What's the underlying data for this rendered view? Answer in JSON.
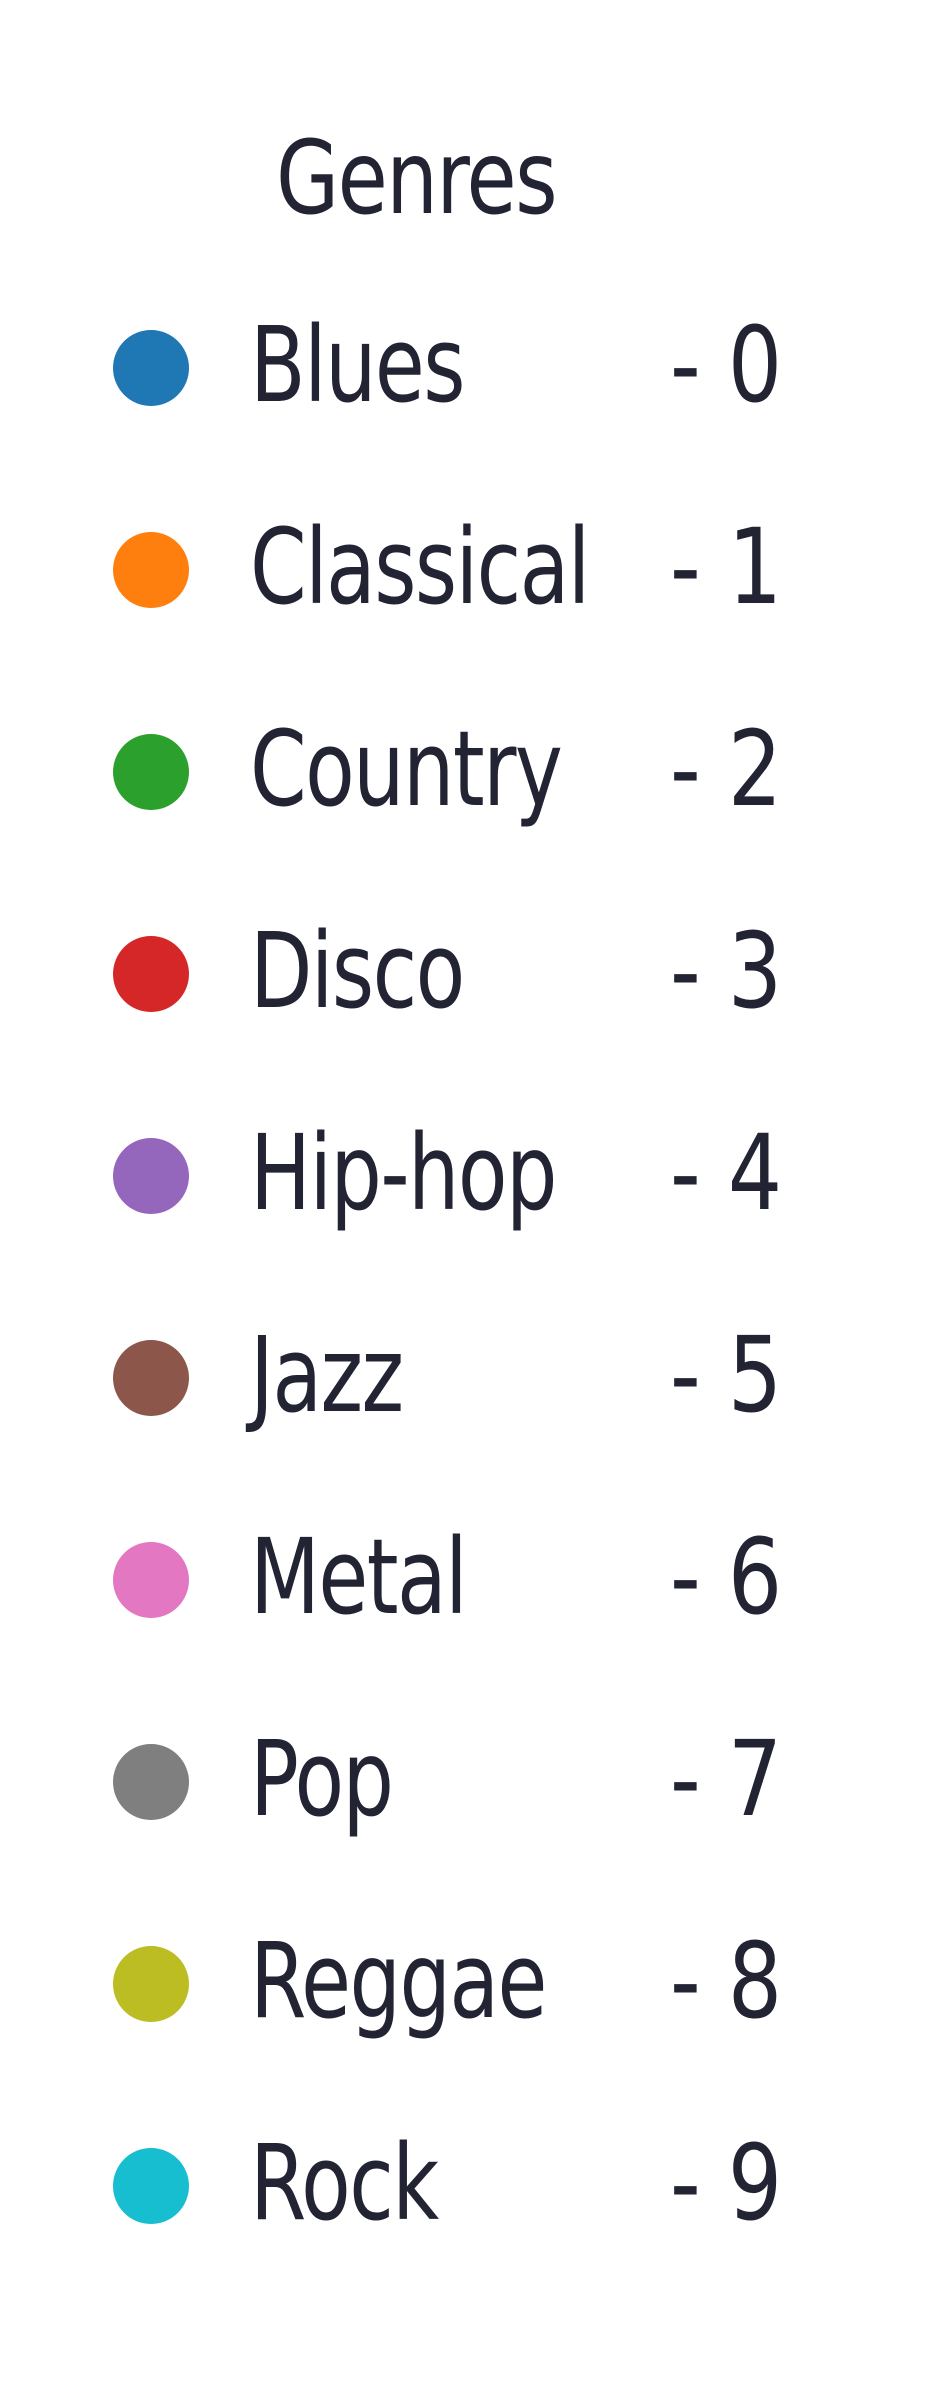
{
  "chart_data": {
    "type": "legend",
    "title": "Genres",
    "entries": [
      {
        "label": "Blues",
        "code": "- 0",
        "color": "#1f77b4"
      },
      {
        "label": "Classical",
        "code": "- 1",
        "color": "#ff7f0e"
      },
      {
        "label": "Country",
        "code": "- 2",
        "color": "#2ca02c"
      },
      {
        "label": "Disco",
        "code": "- 3",
        "color": "#d62728"
      },
      {
        "label": "Hip-hop",
        "code": "- 4",
        "color": "#9467bd"
      },
      {
        "label": "Jazz",
        "code": "- 5",
        "color": "#8c564b"
      },
      {
        "label": "Metal",
        "code": "- 6",
        "color": "#e377c2"
      },
      {
        "label": "Pop",
        "code": "- 7",
        "color": "#7f7f7f"
      },
      {
        "label": "Reggae",
        "code": "- 8",
        "color": "#bcbd22"
      },
      {
        "label": "Rock",
        "code": "- 9",
        "color": "#17becf"
      }
    ]
  }
}
